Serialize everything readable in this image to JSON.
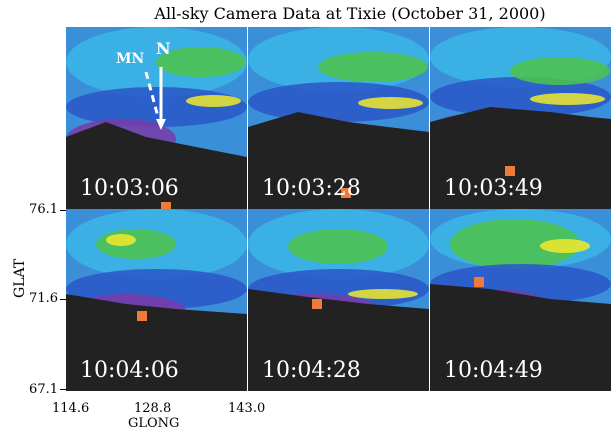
{
  "title": "All-sky Camera Data at Tixie (October 31, 2000)",
  "axes": {
    "ylabel": "GLAT",
    "xlabel": "GLONG",
    "yticks": [
      "76.1",
      "71.6",
      "67.1"
    ],
    "xticks": [
      "114.6",
      "128.8",
      "143.0"
    ]
  },
  "compass": {
    "north": "N",
    "magnetic_north": "MN"
  },
  "panels": [
    {
      "time": "10:03:06",
      "marker": [
        0.55,
        0.66
      ]
    },
    {
      "time": "10:03:28",
      "marker": [
        0.54,
        0.58
      ]
    },
    {
      "time": "10:03:49",
      "marker": [
        0.44,
        0.46
      ]
    },
    {
      "time": "10:04:06",
      "marker": [
        0.42,
        0.26
      ]
    },
    {
      "time": "10:04:28",
      "marker": [
        0.38,
        0.19
      ]
    },
    {
      "time": "10:04:49",
      "marker": [
        0.27,
        0.07
      ]
    }
  ],
  "colors": {
    "marker": "#f07a3a",
    "ground": "#222222"
  }
}
